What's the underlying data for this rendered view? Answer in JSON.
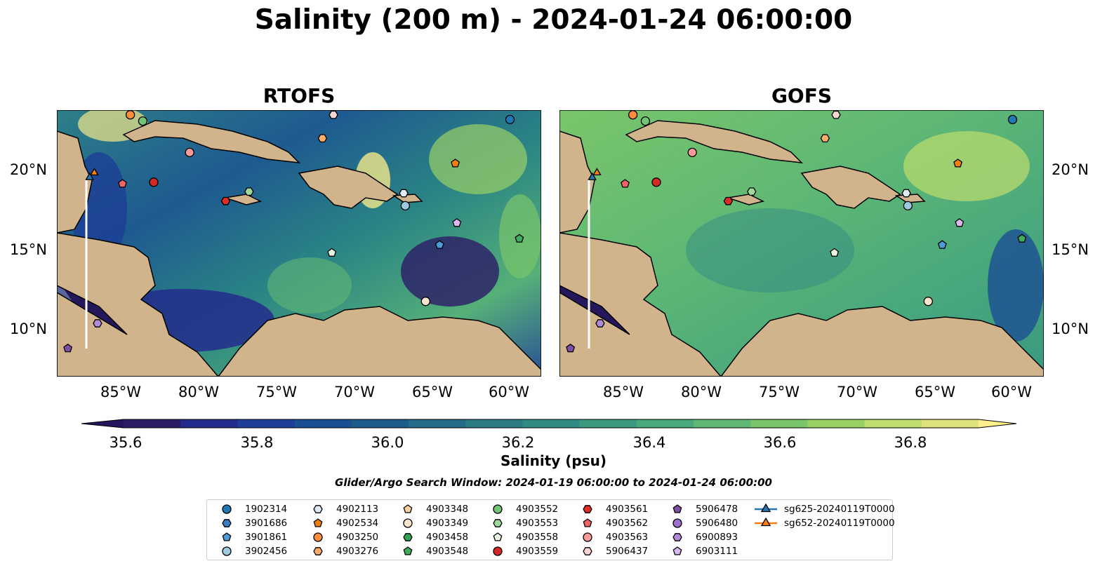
{
  "title": "Salinity (200 m) - 2024-01-24 06:00:00",
  "panels": [
    {
      "title": "RTOFS"
    },
    {
      "title": "GOFS"
    }
  ],
  "map_extent": {
    "lon": [
      -89,
      -58
    ],
    "lat": [
      7,
      24
    ]
  },
  "lat_ticks": [
    "20°N",
    "15°N",
    "10°N"
  ],
  "lon_ticks": [
    "85°W",
    "80°W",
    "75°W",
    "70°W",
    "65°W",
    "60°W"
  ],
  "colorbar": {
    "label": "Salinity (psu)",
    "ticks": [
      "35.6",
      "35.8",
      "36.0",
      "36.2",
      "36.4",
      "36.6",
      "36.8"
    ],
    "colors": [
      "#2c1b66",
      "#232b8c",
      "#1e3e99",
      "#1b4f93",
      "#1d5d8c",
      "#246c88",
      "#2b7b85",
      "#318b83",
      "#3b9a80",
      "#4aa97c",
      "#5fb874",
      "#7ac56b",
      "#97d166",
      "#bedd6c",
      "#e0e27b"
    ],
    "min_color": "#24155e",
    "max_color": "#fcef8c"
  },
  "search_window": "Glider/Argo Search Window: 2024-01-19 06:00:00 to 2024-01-24 06:00:00",
  "colors": {
    "land": "#d2b48c",
    "shelf": "#8fb4e0",
    "deep_dark": "#25175b"
  },
  "legend": [
    {
      "label": "1902314",
      "marker": "circle",
      "color": "#1f77b4"
    },
    {
      "label": "3901686",
      "marker": "hexagon",
      "color": "#3b7fc0"
    },
    {
      "label": "3901861",
      "marker": "pentagon",
      "color": "#4d9bd8"
    },
    {
      "label": "3902456",
      "marker": "circle",
      "color": "#9ecae1"
    },
    {
      "label": "4902113",
      "marker": "hexagon",
      "color": "#deebf7"
    },
    {
      "label": "4902534",
      "marker": "pentagon",
      "color": "#f07f0e"
    },
    {
      "label": "4903250",
      "marker": "circle",
      "color": "#fd8d3c"
    },
    {
      "label": "4903276",
      "marker": "hexagon",
      "color": "#fdae6b"
    },
    {
      "label": "4903348",
      "marker": "pentagon",
      "color": "#fdd0a2"
    },
    {
      "label": "4903349",
      "marker": "circle",
      "color": "#fee6ce"
    },
    {
      "label": "4903458",
      "marker": "hexagon",
      "color": "#31a354"
    },
    {
      "label": "4903548",
      "marker": "pentagon",
      "color": "#41ab5d"
    },
    {
      "label": "4903552",
      "marker": "circle",
      "color": "#74c476"
    },
    {
      "label": "4903553",
      "marker": "hexagon",
      "color": "#a1d99b"
    },
    {
      "label": "4903558",
      "marker": "pentagon",
      "color": "#e5f5e0"
    },
    {
      "label": "4903559",
      "marker": "circle",
      "color": "#d62728"
    },
    {
      "label": "4903561",
      "marker": "hexagon",
      "color": "#de2d26"
    },
    {
      "label": "4903562",
      "marker": "pentagon",
      "color": "#f16565"
    },
    {
      "label": "4903563",
      "marker": "circle",
      "color": "#fc9a9a"
    },
    {
      "label": "5906437",
      "marker": "hexagon",
      "color": "#fcd5d5"
    },
    {
      "label": "5906478",
      "marker": "pentagon",
      "color": "#7b4fa1"
    },
    {
      "label": "5906480",
      "marker": "circle",
      "color": "#9e6fce"
    },
    {
      "label": "6900893",
      "marker": "hexagon",
      "color": "#b08ad9"
    },
    {
      "label": "6903111",
      "marker": "pentagon",
      "color": "#d9b8ef"
    },
    {
      "label": "sg625-20240119T0000",
      "marker": "triangle-line",
      "color": "#1f77b4"
    },
    {
      "label": "sg652-20240119T0000",
      "marker": "triangle-line",
      "color": "#ff7f0e"
    }
  ],
  "observations": [
    {
      "id": "1902314",
      "lon": -60.0,
      "lat": 23.4
    },
    {
      "id": "4903250",
      "lon": -84.3,
      "lat": 23.7
    },
    {
      "id": "4903552",
      "lon": -83.5,
      "lat": 23.3
    },
    {
      "id": "5906437",
      "lon": -71.3,
      "lat": 23.7
    },
    {
      "id": "4903276",
      "lon": -72.0,
      "lat": 22.2
    },
    {
      "id": "4903563",
      "lon": -80.5,
      "lat": 21.3
    },
    {
      "id": "4902534",
      "lon": -63.5,
      "lat": 20.6
    },
    {
      "id": "sg652-20240119T0000",
      "lon": -86.6,
      "lat": 20.0
    },
    {
      "id": "sg625-20240119T0000",
      "lon": -86.9,
      "lat": 19.7
    },
    {
      "id": "4903562",
      "lon": -84.8,
      "lat": 19.3
    },
    {
      "id": "4903559",
      "lon": -82.8,
      "lat": 19.4
    },
    {
      "id": "4903553",
      "lon": -76.7,
      "lat": 18.8
    },
    {
      "id": "4903561",
      "lon": -78.2,
      "lat": 18.2
    },
    {
      "id": "4902113",
      "lon": -66.8,
      "lat": 18.7
    },
    {
      "id": "3902456",
      "lon": -66.7,
      "lat": 17.9
    },
    {
      "id": "6903111",
      "lon": -63.4,
      "lat": 16.8
    },
    {
      "id": "4903548",
      "lon": -59.4,
      "lat": 15.8
    },
    {
      "id": "3901861",
      "lon": -64.5,
      "lat": 15.4
    },
    {
      "id": "4903558",
      "lon": -71.4,
      "lat": 14.9
    },
    {
      "id": "4903349",
      "lon": -65.4,
      "lat": 11.8
    },
    {
      "id": "6900893",
      "lon": -86.4,
      "lat": 10.4
    },
    {
      "id": "5906478",
      "lon": -88.3,
      "lat": 8.8
    }
  ]
}
